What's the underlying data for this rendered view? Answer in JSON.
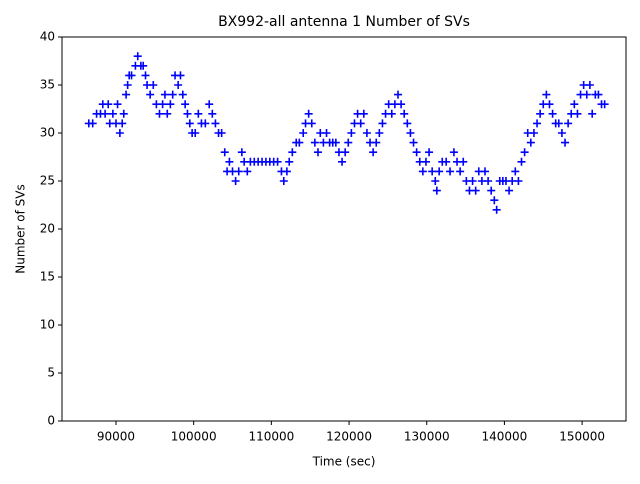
{
  "chart_data": {
    "type": "scatter",
    "title": "BX992-all antenna 1 Number of SVs",
    "x_label": "Time (sec)",
    "y_label": "Number of SVs",
    "color": "#0000ff",
    "xlim": [
      83050,
      155650
    ],
    "ylim": [
      0,
      40
    ],
    "xticks": [
      90000,
      100000,
      110000,
      120000,
      130000,
      140000,
      150000
    ],
    "yticks": [
      0,
      5,
      10,
      15,
      20,
      25,
      30,
      35,
      40
    ],
    "x": [
      86500,
      87000,
      87500,
      88000,
      88300,
      88600,
      89000,
      89200,
      89600,
      90000,
      90200,
      90500,
      90800,
      91000,
      91300,
      91500,
      91700,
      92000,
      92500,
      92800,
      93200,
      93500,
      93800,
      94000,
      94400,
      94800,
      95200,
      95600,
      96000,
      96300,
      96600,
      97000,
      97300,
      97600,
      98000,
      98300,
      98600,
      98900,
      99200,
      99500,
      99800,
      100200,
      100600,
      101000,
      101500,
      102000,
      102400,
      102800,
      103200,
      103600,
      104000,
      104300,
      104600,
      105000,
      105400,
      105800,
      106200,
      106500,
      106900,
      107300,
      107800,
      108300,
      108800,
      109300,
      109800,
      110300,
      110800,
      111300,
      111600,
      112000,
      112300,
      112700,
      113200,
      113600,
      114100,
      114400,
      114800,
      115200,
      115600,
      116000,
      116300,
      116700,
      117100,
      117500,
      117900,
      118300,
      118700,
      119100,
      119500,
      119900,
      120300,
      120700,
      121100,
      121500,
      121900,
      122300,
      122700,
      123100,
      123500,
      123900,
      124300,
      124700,
      125100,
      125500,
      125900,
      126300,
      126700,
      127100,
      127500,
      127900,
      128300,
      128700,
      129100,
      129500,
      129900,
      130300,
      130700,
      131100,
      131300,
      131600,
      132000,
      132500,
      133000,
      133500,
      133900,
      134300,
      134700,
      135100,
      135500,
      135900,
      136300,
      136700,
      137100,
      137500,
      137900,
      138300,
      138700,
      139000,
      139400,
      139800,
      140200,
      140600,
      141000,
      141400,
      141800,
      142200,
      142600,
      143000,
      143400,
      143800,
      144200,
      144600,
      145000,
      145400,
      145800,
      146200,
      146600,
      147000,
      147400,
      147800,
      148200,
      148600,
      149000,
      149400,
      149800,
      150200,
      150600,
      151000,
      151300,
      151700,
      152100,
      152500,
      152900
    ],
    "values": [
      31,
      31,
      32,
      32,
      33,
      32,
      33,
      31,
      32,
      31,
      33,
      30,
      31,
      32,
      34,
      35,
      36,
      36,
      37,
      38,
      37,
      37,
      36,
      35,
      34,
      35,
      33,
      32,
      33,
      34,
      32,
      33,
      34,
      36,
      35,
      36,
      34,
      33,
      32,
      31,
      30,
      30,
      32,
      31,
      31,
      33,
      32,
      31,
      30,
      30,
      28,
      26,
      27,
      26,
      25,
      26,
      28,
      27,
      26,
      27,
      27,
      27,
      27,
      27,
      27,
      27,
      27,
      26,
      25,
      26,
      27,
      28,
      29,
      29,
      30,
      31,
      32,
      31,
      29,
      28,
      30,
      29,
      30,
      29,
      29,
      29,
      28,
      27,
      28,
      29,
      30,
      31,
      32,
      31,
      32,
      30,
      29,
      28,
      29,
      30,
      31,
      32,
      33,
      32,
      33,
      34,
      33,
      32,
      31,
      30,
      29,
      28,
      27,
      26,
      27,
      28,
      26,
      25,
      24,
      26,
      27,
      27,
      26,
      28,
      27,
      26,
      27,
      25,
      24,
      25,
      24,
      26,
      25,
      26,
      25,
      24,
      23,
      22,
      25,
      25,
      25,
      24,
      25,
      26,
      25,
      27,
      28,
      30,
      29,
      30,
      31,
      32,
      33,
      34,
      33,
      32,
      31,
      31,
      30,
      29,
      31,
      32,
      33,
      32,
      34,
      35,
      34,
      35,
      32,
      34,
      34,
      33,
      33
    ]
  }
}
